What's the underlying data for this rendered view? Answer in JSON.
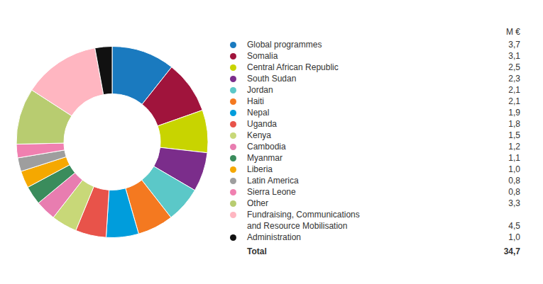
{
  "chart_data": {
    "type": "pie",
    "categories": [
      "Global programmes",
      "Somalia",
      "Central African Republic",
      "South Sudan",
      "Jordan",
      "Haiti",
      "Nepal",
      "Uganda",
      "Kenya",
      "Cambodia",
      "Myanmar",
      "Liberia",
      "Latin America",
      "Sierra Leone",
      "Other",
      "Fundraising, Communications\nand Resource Mobilisation",
      "Administration"
    ],
    "values": [
      3.7,
      3.1,
      2.5,
      2.3,
      2.1,
      2.1,
      1.9,
      1.8,
      1.5,
      1.2,
      1.1,
      1.0,
      0.8,
      0.8,
      3.3,
      4.5,
      1.0
    ],
    "value_labels": [
      "3,7",
      "3,1",
      "2,5",
      "2,3",
      "2,1",
      "2,1",
      "1,9",
      "1,8",
      "1,5",
      "1,2",
      "1,1",
      "1,0",
      "0,8",
      "0,8",
      "3,3",
      "4,5",
      "1,0"
    ],
    "colors": [
      "#1a7abf",
      "#a0143c",
      "#c8d400",
      "#7b2d8b",
      "#5bc8c8",
      "#f47920",
      "#009ddc",
      "#e8534a",
      "#c8d878",
      "#e87db0",
      "#3a8c5c",
      "#f5a800",
      "#9e9e9e",
      "#f080b0",
      "#b8cc70",
      "#ffb6c1",
      "#111111"
    ],
    "legend": "right",
    "unit_label": "M €",
    "total_label": "Total",
    "total_value": 34.7,
    "total_value_label": "34,7"
  }
}
